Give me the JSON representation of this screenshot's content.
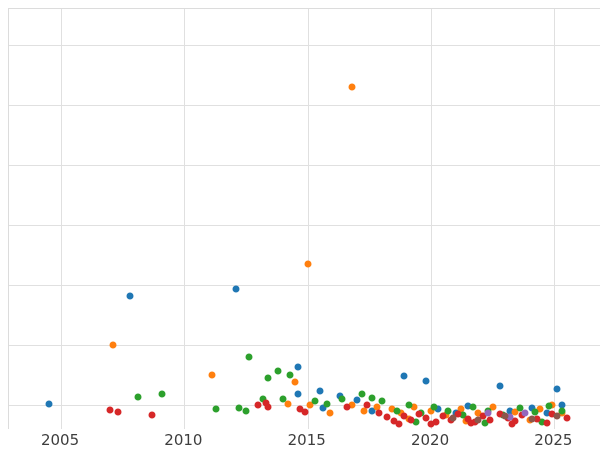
{
  "chart_data": {
    "type": "scatter",
    "title": "",
    "xlabel": "",
    "ylabel": "",
    "xlim": [
      2002.89,
      2026.89
    ],
    "ylim": [
      0,
      7
    ],
    "x_ticks": [
      2005,
      2010,
      2015,
      2020,
      2025
    ],
    "y_gridlines": [
      0.4,
      1.4,
      2.4,
      3.4,
      4.4,
      5.4,
      6.4
    ],
    "grid": true,
    "legend": "none",
    "marker_size_px": 7,
    "series": [
      {
        "name": "series-blue",
        "color": "#1f77b4",
        "points": [
          [
            2004.5,
            0.42
          ],
          [
            2007.8,
            2.22
          ],
          [
            2012.1,
            2.33
          ],
          [
            2014.6,
            0.58
          ],
          [
            2014.6,
            1.03
          ],
          [
            2015.5,
            0.63
          ],
          [
            2015.6,
            0.35
          ],
          [
            2016.3,
            0.55
          ],
          [
            2017.0,
            0.48
          ],
          [
            2017.6,
            0.3
          ],
          [
            2018.9,
            0.88
          ],
          [
            2019.8,
            0.8
          ],
          [
            2020.3,
            0.33
          ],
          [
            2021.0,
            0.27
          ],
          [
            2021.5,
            0.38
          ],
          [
            2022.8,
            0.72
          ],
          [
            2023.2,
            0.3
          ],
          [
            2024.1,
            0.35
          ],
          [
            2024.7,
            0.27
          ],
          [
            2025.1,
            0.67
          ],
          [
            2025.3,
            0.4
          ]
        ]
      },
      {
        "name": "series-orange",
        "color": "#ff7f0e",
        "points": [
          [
            2007.1,
            1.4
          ],
          [
            2011.1,
            0.9
          ],
          [
            2014.2,
            0.42
          ],
          [
            2014.5,
            0.78
          ],
          [
            2015.0,
            2.75
          ],
          [
            2015.1,
            0.4
          ],
          [
            2015.9,
            0.27
          ],
          [
            2016.8,
            5.7
          ],
          [
            2016.8,
            0.4
          ],
          [
            2017.3,
            0.3
          ],
          [
            2017.8,
            0.37
          ],
          [
            2018.4,
            0.33
          ],
          [
            2018.8,
            0.27
          ],
          [
            2019.1,
            0.17
          ],
          [
            2019.3,
            0.37
          ],
          [
            2020.0,
            0.3
          ],
          [
            2020.6,
            0.23
          ],
          [
            2021.2,
            0.33
          ],
          [
            2021.4,
            0.13
          ],
          [
            2021.9,
            0.27
          ],
          [
            2022.5,
            0.37
          ],
          [
            2023.4,
            0.28
          ],
          [
            2024.0,
            0.15
          ],
          [
            2024.4,
            0.33
          ],
          [
            2024.9,
            0.4
          ],
          [
            2025.3,
            0.27
          ]
        ]
      },
      {
        "name": "series-green",
        "color": "#2ca02c",
        "points": [
          [
            2008.1,
            0.53
          ],
          [
            2009.1,
            0.58
          ],
          [
            2011.3,
            0.33
          ],
          [
            2012.2,
            0.35
          ],
          [
            2012.5,
            0.3
          ],
          [
            2012.6,
            1.2
          ],
          [
            2013.2,
            0.5
          ],
          [
            2013.4,
            0.85
          ],
          [
            2013.8,
            0.97
          ],
          [
            2014.0,
            0.5
          ],
          [
            2014.3,
            0.9
          ],
          [
            2015.3,
            0.47
          ],
          [
            2015.8,
            0.42
          ],
          [
            2016.4,
            0.5
          ],
          [
            2017.2,
            0.58
          ],
          [
            2017.6,
            0.52
          ],
          [
            2018.0,
            0.47
          ],
          [
            2018.6,
            0.3
          ],
          [
            2019.1,
            0.4
          ],
          [
            2019.4,
            0.12
          ],
          [
            2019.6,
            0.27
          ],
          [
            2020.1,
            0.37
          ],
          [
            2020.7,
            0.3
          ],
          [
            2021.3,
            0.23
          ],
          [
            2021.7,
            0.37
          ],
          [
            2022.2,
            0.1
          ],
          [
            2022.3,
            0.3
          ],
          [
            2022.9,
            0.23
          ],
          [
            2023.6,
            0.35
          ],
          [
            2024.2,
            0.28
          ],
          [
            2024.5,
            0.12
          ],
          [
            2024.8,
            0.38
          ],
          [
            2025.3,
            0.3
          ]
        ]
      },
      {
        "name": "series-red",
        "color": "#d62728",
        "points": [
          [
            2007.0,
            0.32
          ],
          [
            2007.3,
            0.28
          ],
          [
            2008.7,
            0.23
          ],
          [
            2013.0,
            0.4
          ],
          [
            2013.3,
            0.43
          ],
          [
            2013.4,
            0.37
          ],
          [
            2014.7,
            0.33
          ],
          [
            2014.9,
            0.28
          ],
          [
            2016.6,
            0.37
          ],
          [
            2017.4,
            0.4
          ],
          [
            2017.9,
            0.27
          ],
          [
            2018.2,
            0.2
          ],
          [
            2018.5,
            0.13
          ],
          [
            2018.7,
            0.08
          ],
          [
            2018.9,
            0.22
          ],
          [
            2019.2,
            0.15
          ],
          [
            2019.5,
            0.25
          ],
          [
            2019.8,
            0.18
          ],
          [
            2020.0,
            0.08
          ],
          [
            2020.2,
            0.12
          ],
          [
            2020.5,
            0.22
          ],
          [
            2020.8,
            0.15
          ],
          [
            2021.1,
            0.25
          ],
          [
            2021.5,
            0.17
          ],
          [
            2021.6,
            0.1
          ],
          [
            2021.8,
            0.12
          ],
          [
            2022.1,
            0.22
          ],
          [
            2022.4,
            0.15
          ],
          [
            2022.8,
            0.25
          ],
          [
            2023.1,
            0.18
          ],
          [
            2023.3,
            0.08
          ],
          [
            2023.4,
            0.13
          ],
          [
            2023.7,
            0.23
          ],
          [
            2024.3,
            0.17
          ],
          [
            2024.7,
            0.1
          ],
          [
            2024.9,
            0.25
          ],
          [
            2025.5,
            0.18
          ]
        ]
      },
      {
        "name": "series-purple",
        "color": "#9467bd",
        "points": [
          [
            2022.3,
            0.27
          ],
          [
            2023.2,
            0.2
          ],
          [
            2023.8,
            0.27
          ]
        ]
      },
      {
        "name": "series-brown",
        "color": "#8c564b",
        "points": [
          [
            2020.9,
            0.18
          ],
          [
            2021.9,
            0.15
          ],
          [
            2023.0,
            0.22
          ],
          [
            2024.1,
            0.17
          ],
          [
            2025.1,
            0.22
          ]
        ]
      }
    ]
  }
}
